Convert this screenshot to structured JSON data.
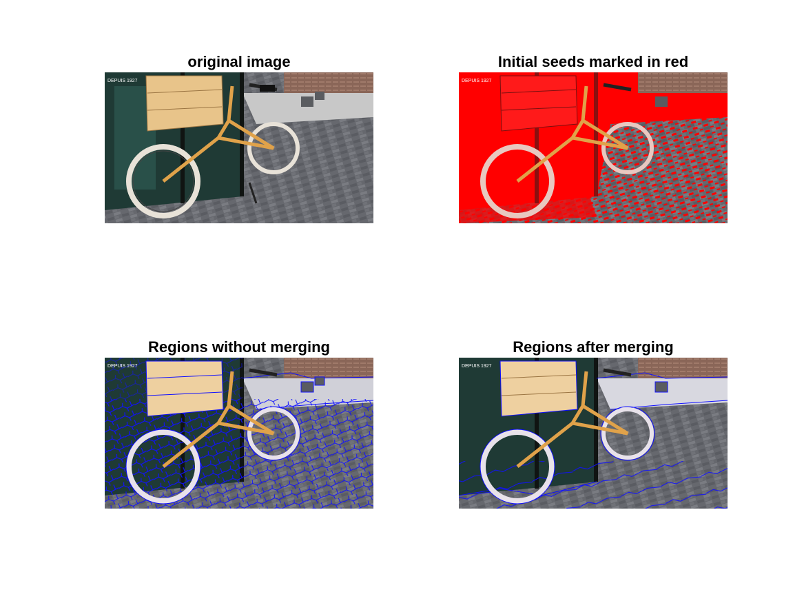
{
  "panels": [
    {
      "id": "original",
      "title": "original image",
      "shop_text": "DEPUIS 1927"
    },
    {
      "id": "seeds",
      "title": "Initial seeds marked in red",
      "shop_text": "DEPUIS 1927"
    },
    {
      "id": "no-merge",
      "title": "Regions without merging",
      "shop_text": "DEPUIS 1927"
    },
    {
      "id": "merged",
      "title": "Regions after merging",
      "shop_text": "DEPUIS 1927"
    }
  ],
  "colors": {
    "seed_overlay": "#ff0000",
    "region_boundary": "#0000ff",
    "frame": "#e0a24a",
    "crate": "#e8c48a",
    "pavement": "#6b6d73",
    "glass": "#1f3a35"
  }
}
